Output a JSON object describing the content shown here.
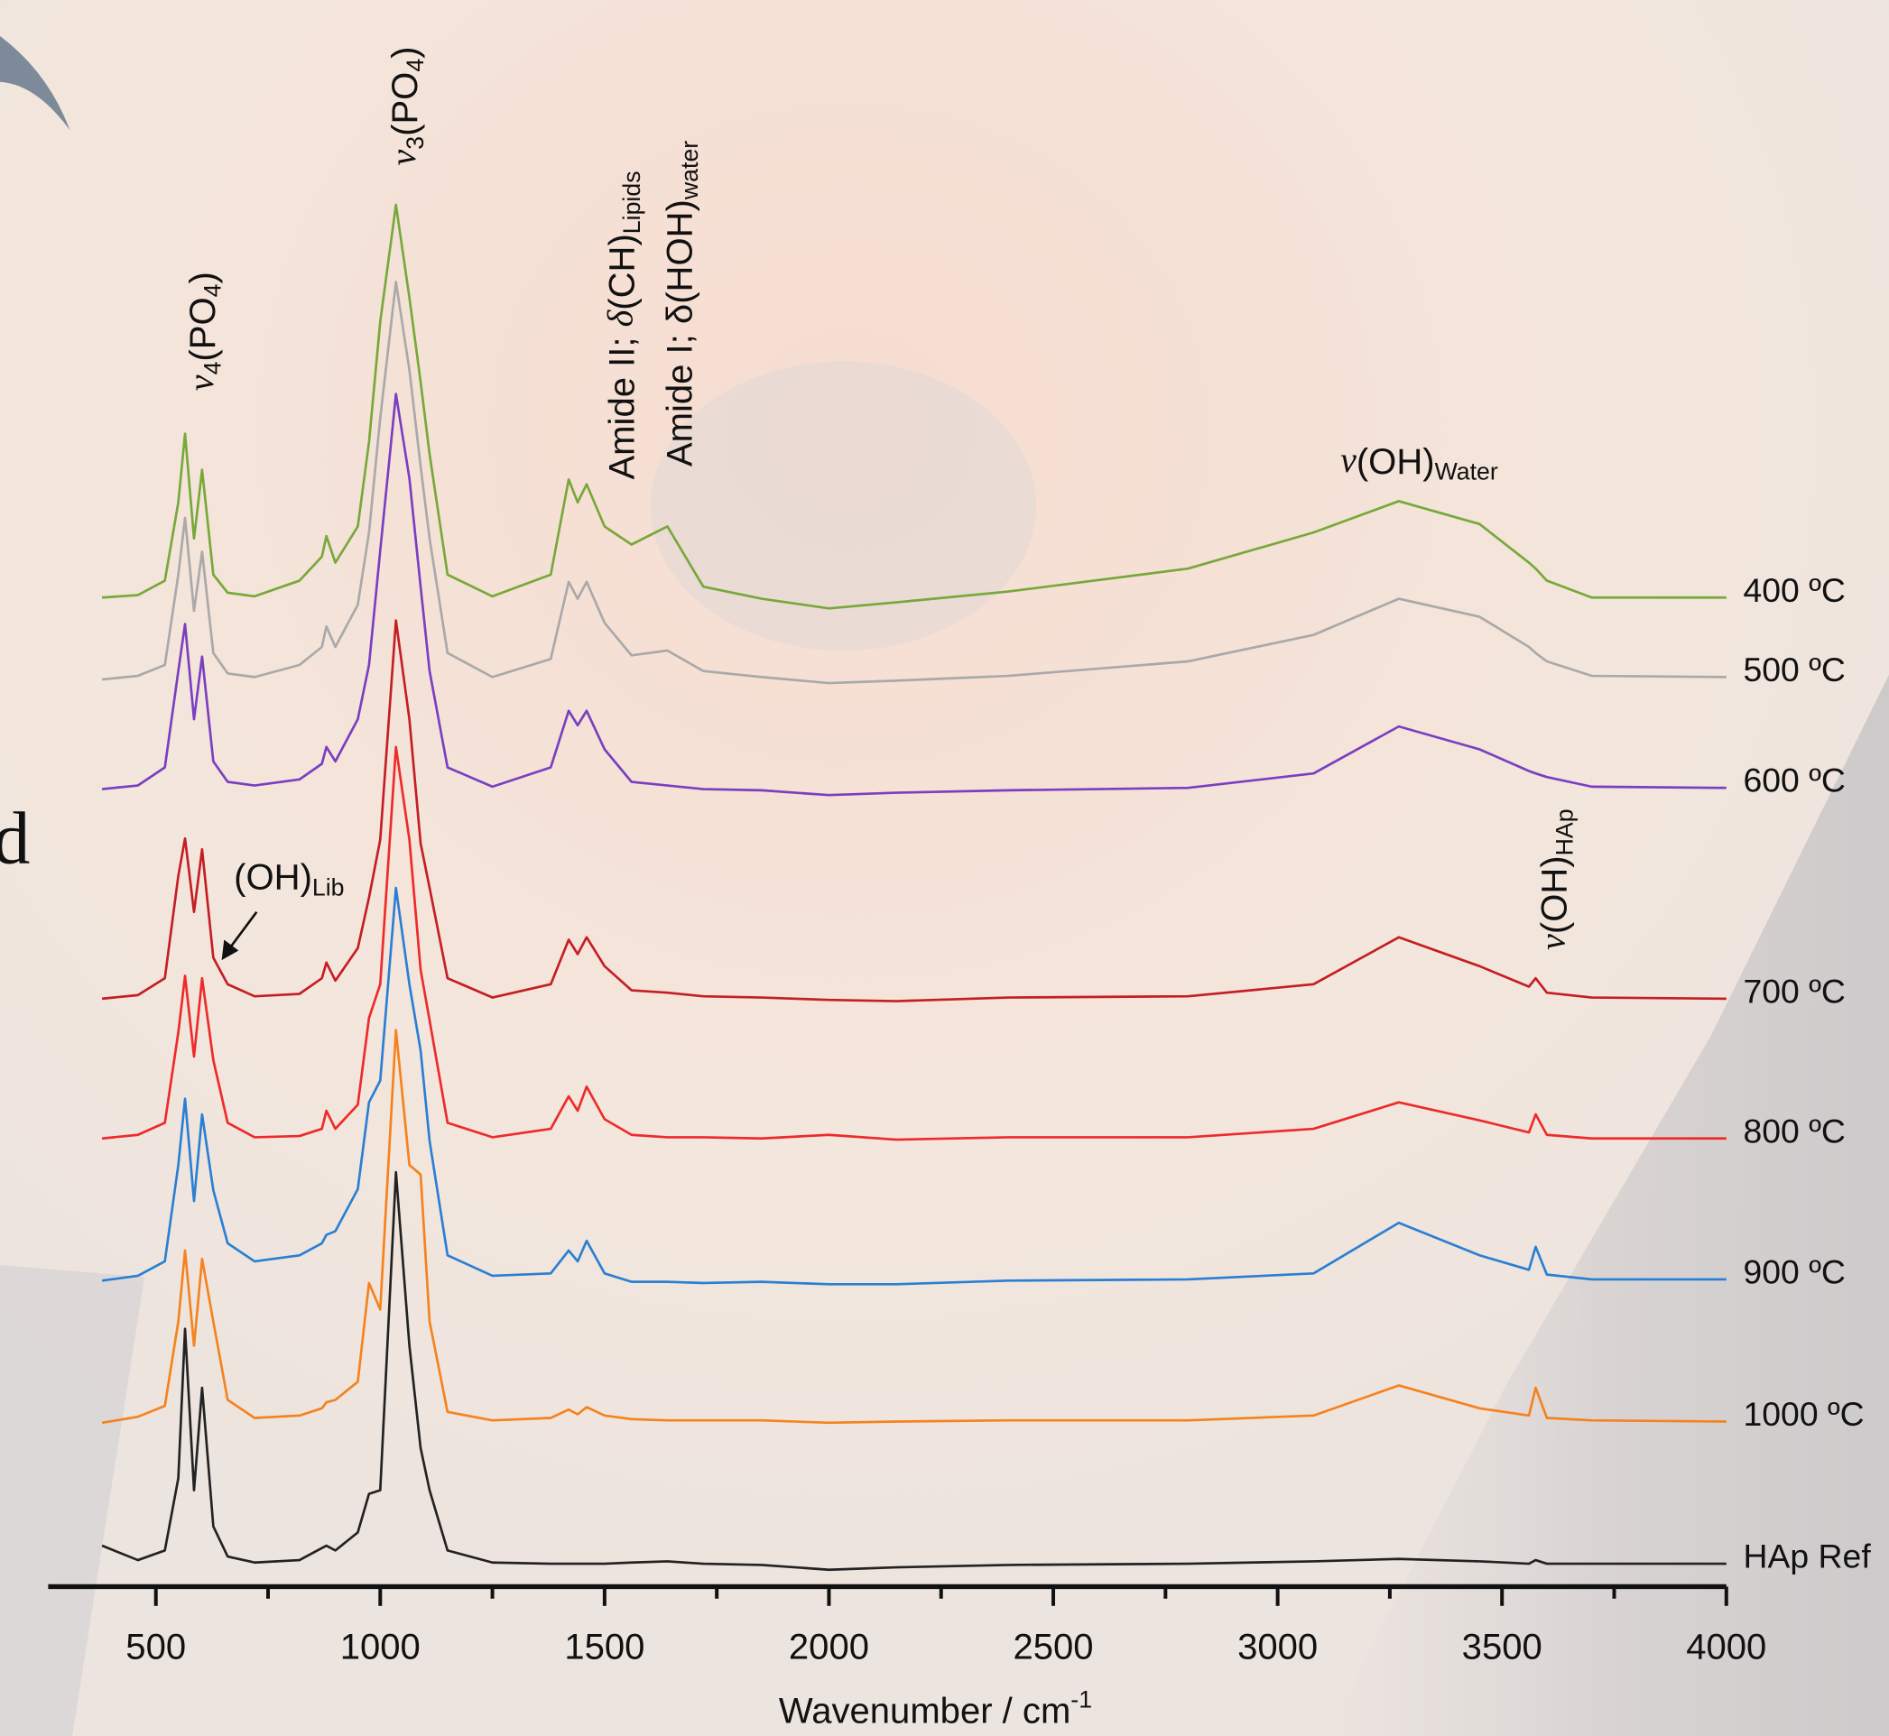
{
  "chart_data": {
    "type": "line",
    "edge_text": "d",
    "xlabel": {
      "parts": [
        {
          "text": "Wavenumber / cm"
        },
        {
          "text": "-1",
          "sup": true
        }
      ]
    },
    "xlim": [
      260,
      4000
    ],
    "xticks": [
      500,
      1000,
      1500,
      2000,
      2500,
      3000,
      3500,
      4000
    ],
    "xminorticks": [
      750,
      1250,
      1750,
      2250,
      2750,
      3250,
      3750
    ],
    "ylim": [
      0,
      130
    ],
    "x": [
      380,
      460,
      520,
      550,
      565,
      585,
      603,
      628,
      660,
      720,
      820,
      870,
      880,
      900,
      950,
      975,
      1000,
      1035,
      1065,
      1090,
      1110,
      1150,
      1250,
      1380,
      1420,
      1440,
      1460,
      1500,
      1560,
      1640,
      1720,
      1850,
      2000,
      2150,
      2400,
      2800,
      3080,
      3270,
      3450,
      3560,
      3575,
      3600,
      3700,
      4000
    ],
    "series": [
      {
        "name": "400 ºC",
        "color": "#77a83a",
        "values": [
          82.1,
          82.3,
          83.5,
          90,
          95.7,
          87,
          92.7,
          84,
          82.5,
          82.2,
          83.5,
          85.5,
          87.2,
          85,
          88,
          95,
          105,
          114.7,
          107,
          100,
          94,
          84,
          82.2,
          84,
          91.9,
          90,
          91.5,
          88,
          86.5,
          88,
          83,
          82,
          81.2,
          81.7,
          82.6,
          84.5,
          87.5,
          90.1,
          88.2,
          85,
          84.5,
          83.5,
          82.1,
          82.1
        ]
      },
      {
        "name": "500 ºC",
        "color": "#a9a9a9",
        "values": [
          75.3,
          75.6,
          76.5,
          84,
          88.7,
          81,
          85.9,
          77.5,
          75.8,
          75.5,
          76.5,
          78,
          79.7,
          78,
          81.5,
          87.5,
          97,
          108.3,
          101,
          93,
          87,
          77.5,
          75.5,
          77,
          83.4,
          82,
          83.4,
          80,
          77.3,
          77.7,
          76,
          75.5,
          75,
          75.2,
          75.6,
          76.8,
          79,
          82,
          80.5,
          78,
          77.5,
          76.8,
          75.6,
          75.5
        ]
      },
      {
        "name": "600 ºC",
        "color": "#7a3fc0",
        "values": [
          66.2,
          66.5,
          68,
          76,
          79.9,
          72,
          77.2,
          68.5,
          66.8,
          66.5,
          67,
          68.3,
          69.7,
          68.5,
          72,
          76.5,
          86,
          99,
          92,
          83,
          76,
          68,
          66.4,
          68,
          72.7,
          71.5,
          72.7,
          69.5,
          66.8,
          66.5,
          66.2,
          66.1,
          65.7,
          65.9,
          66.1,
          66.3,
          67.5,
          71.4,
          69.5,
          67.7,
          67.5,
          67.2,
          66.4,
          66.3
        ]
      },
      {
        "name": "700 ºC",
        "color": "#c41e24",
        "values": [
          48.8,
          49.1,
          50.5,
          59,
          62.1,
          56,
          61.2,
          52.2,
          50,
          49,
          49.2,
          50.5,
          51.8,
          50.3,
          53,
          57.2,
          62,
          80.2,
          72,
          61.7,
          58,
          50.5,
          48.9,
          50,
          53.7,
          52.5,
          53.9,
          51.5,
          49.5,
          49.3,
          49,
          48.9,
          48.7,
          48.6,
          48.9,
          49,
          50,
          53.9,
          51.5,
          49.8,
          50.5,
          49.3,
          48.9,
          48.8
        ]
      },
      {
        "name": "800 ºC",
        "color": "#ee2a2a",
        "values": [
          37.2,
          37.5,
          38.5,
          46,
          50.7,
          44,
          50.5,
          43.7,
          38.5,
          37.3,
          37.4,
          38,
          39.5,
          38,
          40,
          47.2,
          50,
          69.7,
          62,
          51.2,
          47,
          38.5,
          37.3,
          38,
          40.7,
          39.5,
          41.5,
          38.8,
          37.5,
          37.3,
          37.3,
          37.2,
          37.5,
          37.1,
          37.3,
          37.3,
          38,
          40.2,
          38.7,
          37.7,
          39.2,
          37.5,
          37.2,
          37.2
        ]
      },
      {
        "name": "900 ºC",
        "color": "#2a7fd4",
        "values": [
          25.4,
          25.8,
          27,
          35,
          40.5,
          32,
          39.2,
          32.9,
          28.5,
          27,
          27.5,
          28.5,
          29.2,
          29.5,
          33,
          40.2,
          42,
          58,
          50,
          44.5,
          37,
          27.5,
          25.8,
          26,
          27.9,
          27,
          28.7,
          26,
          25.3,
          25.3,
          25.2,
          25.3,
          25.1,
          25.1,
          25.4,
          25.5,
          26,
          30.2,
          27.5,
          26.3,
          28.2,
          25.9,
          25.5,
          25.5
        ]
      },
      {
        "name": "1000 ºC",
        "color": "#f5821f",
        "values": [
          13.6,
          14.1,
          15,
          22,
          27.9,
          20,
          27.2,
          22,
          15.5,
          14,
          14.2,
          14.8,
          15.3,
          15.5,
          17,
          25.2,
          23,
          46.2,
          35,
          34.2,
          22,
          14.5,
          13.8,
          14,
          14.7,
          14.3,
          14.9,
          14.2,
          13.9,
          13.8,
          13.8,
          13.8,
          13.6,
          13.7,
          13.8,
          13.8,
          14.2,
          16.7,
          14.8,
          14.2,
          16.5,
          14,
          13.8,
          13.7
        ]
      },
      {
        "name": "HAp Ref",
        "color": "#222222",
        "values": [
          3.4,
          2.2,
          3,
          9,
          21.4,
          8,
          16.5,
          5,
          2.5,
          2,
          2.2,
          3.2,
          3.4,
          3,
          4.5,
          7.7,
          8,
          34.4,
          20,
          11.5,
          8,
          3,
          2,
          1.9,
          1.9,
          1.9,
          1.9,
          1.9,
          2,
          2.1,
          1.9,
          1.8,
          1.4,
          1.6,
          1.8,
          1.9,
          2.1,
          2.3,
          2.1,
          1.9,
          2.2,
          1.9,
          1.9,
          1.9
        ]
      }
    ],
    "annotations": [
      {
        "parts": [
          {
            "text": "v",
            "italic": true
          },
          {
            "text": "4",
            "sub": true
          },
          {
            "text": "(PO"
          },
          {
            "text": "4",
            "sub": true
          },
          {
            "text": ")"
          }
        ]
      },
      {
        "parts": [
          {
            "text": "v",
            "italic": true
          },
          {
            "text": "3",
            "sub": true
          },
          {
            "text": "(PO"
          },
          {
            "text": "4",
            "sub": true
          },
          {
            "text": ")"
          }
        ]
      },
      {
        "parts": [
          {
            "text": "Amide II; "
          },
          {
            "text": "δ",
            "italic": true
          },
          {
            "text": "(CH)"
          },
          {
            "text": "Lipids",
            "sub": true
          }
        ]
      },
      {
        "parts": [
          {
            "text": "Amide I;  δ(HOH)"
          },
          {
            "text": "water",
            "sub": true
          }
        ]
      },
      {
        "parts": [
          {
            "text": "v",
            "italic": true
          },
          {
            "text": "(OH)"
          },
          {
            "text": "Water",
            "sub": true
          }
        ]
      },
      {
        "parts": [
          {
            "text": "v",
            "italic": true
          },
          {
            "text": "(OH)"
          },
          {
            "text": "HAp",
            "sub": true
          }
        ]
      },
      {
        "parts": [
          {
            "text": "(OH)"
          },
          {
            "text": "Lib",
            "sub": true
          }
        ]
      }
    ]
  }
}
